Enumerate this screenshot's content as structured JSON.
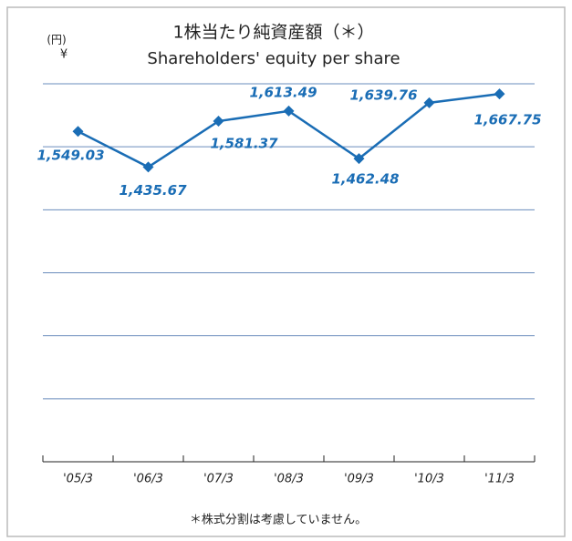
{
  "chart_data": {
    "type": "line",
    "title": "1株当たり純資産額（＊）",
    "subtitle": "Shareholders' equity per share",
    "unit_label": "(円)",
    "currency_label": "¥",
    "footnote": "＊株式分割は考慮していません。",
    "categories": [
      "'05/3",
      "'06/3",
      "'07/3",
      "'08/3",
      "'09/3",
      "'10/3",
      "'11/3"
    ],
    "series": [
      {
        "name": "Shareholders' equity per share",
        "color": "#1a6db5",
        "values": [
          1549.03,
          1435.67,
          1581.37,
          1613.49,
          1462.48,
          1639.76,
          1667.75
        ],
        "value_labels": [
          "1,549.03",
          "1,435.67",
          "1,581.37",
          "1,613.49",
          "1,462.48",
          "1,639.76",
          "1,667.75"
        ]
      }
    ],
    "ylim": [
      500,
      1700
    ],
    "yticks": [
      700,
      900,
      1100,
      1300,
      1500,
      1700
    ],
    "grid": true
  }
}
